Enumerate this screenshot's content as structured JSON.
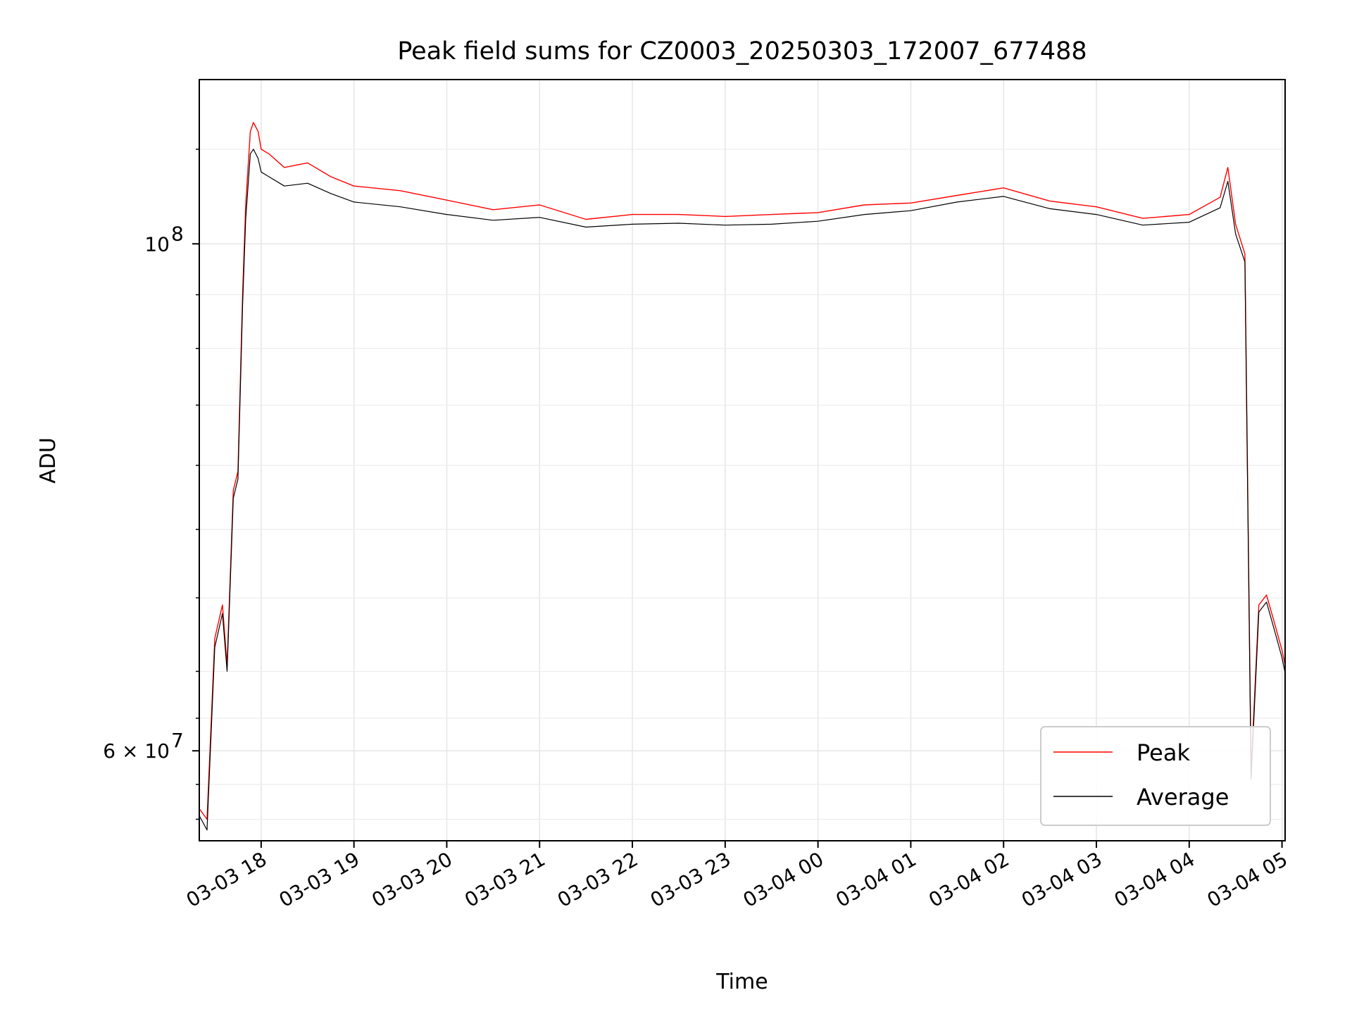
{
  "chart_data": {
    "type": "line",
    "title": "Peak field sums for CZ0003_20250303_172007_677488",
    "xlabel": "Time",
    "ylabel": "ADU",
    "y_scale": "log",
    "xlim": [
      "2025-03-03 17:20",
      "2025-03-04 05:02"
    ],
    "ylim": [
      54800000,
      118000000
    ],
    "grid": true,
    "legend_position": "lower-right",
    "x_ticks": [
      "03-03 18",
      "03-03 19",
      "03-03 20",
      "03-03 21",
      "03-03 22",
      "03-03 23",
      "03-04 00",
      "03-04 01",
      "03-04 02",
      "03-04 03",
      "03-04 04",
      "03-04 05"
    ],
    "x_tick_times": [
      "2025-03-03 18:00",
      "2025-03-03 19:00",
      "2025-03-03 20:00",
      "2025-03-03 21:00",
      "2025-03-03 22:00",
      "2025-03-03 23:00",
      "2025-03-04 00:00",
      "2025-03-04 01:00",
      "2025-03-04 02:00",
      "2025-03-04 03:00",
      "2025-03-04 04:00",
      "2025-03-04 05:00"
    ],
    "y_ticks": [
      {
        "value": 100000000,
        "label": "10",
        "exponent": "8"
      },
      {
        "value": 60000000,
        "label": "6 × 10",
        "exponent": "7"
      }
    ],
    "y_minor_ticks": [
      56000000,
      58000000,
      62000000,
      65000000,
      70000000,
      75000000,
      80000000,
      85000000,
      90000000,
      95000000,
      110000000
    ],
    "series": [
      {
        "name": "Peak",
        "color": "#ff0000",
        "x": [
          "2025-03-03 17:20",
          "2025-03-03 17:25",
          "2025-03-03 17:30",
          "2025-03-03 17:35",
          "2025-03-03 17:38",
          "2025-03-03 17:42",
          "2025-03-03 17:45",
          "2025-03-03 17:48",
          "2025-03-03 17:50",
          "2025-03-03 17:53",
          "2025-03-03 17:55",
          "2025-03-03 17:58",
          "2025-03-03 18:00",
          "2025-03-03 18:05",
          "2025-03-03 18:15",
          "2025-03-03 18:30",
          "2025-03-03 18:45",
          "2025-03-03 19:00",
          "2025-03-03 19:30",
          "2025-03-03 20:00",
          "2025-03-03 20:30",
          "2025-03-03 21:00",
          "2025-03-03 21:30",
          "2025-03-03 22:00",
          "2025-03-03 22:30",
          "2025-03-03 23:00",
          "2025-03-03 23:30",
          "2025-03-04 00:00",
          "2025-03-04 00:30",
          "2025-03-04 01:00",
          "2025-03-04 01:30",
          "2025-03-04 02:00",
          "2025-03-04 02:30",
          "2025-03-04 03:00",
          "2025-03-04 03:30",
          "2025-03-04 04:00",
          "2025-03-04 04:20",
          "2025-03-04 04:25",
          "2025-03-04 04:30",
          "2025-03-04 04:36",
          "2025-03-04 04:40",
          "2025-03-04 04:45",
          "2025-03-04 04:50",
          "2025-03-04 04:55",
          "2025-03-04 05:00",
          "2025-03-04 05:02"
        ],
        "values": [
          56600000,
          56000000,
          67200000,
          69500000,
          65400000,
          78000000,
          79500000,
          95000000,
          104000000,
          112000000,
          113000000,
          112000000,
          110000000,
          109500000,
          108000000,
          108500000,
          107000000,
          106000000,
          105500000,
          104500000,
          103500000,
          104000000,
          102500000,
          103000000,
          103000000,
          102800000,
          103000000,
          103200000,
          104000000,
          104200000,
          105000000,
          105800000,
          104400000,
          103800000,
          102600000,
          103000000,
          104800000,
          108000000,
          102000000,
          99000000,
          58800000,
          69500000,
          70200000,
          68300000,
          66400000,
          65400000
        ]
      },
      {
        "name": "Average",
        "color": "#000000",
        "x": [
          "2025-03-03 17:20",
          "2025-03-03 17:25",
          "2025-03-03 17:30",
          "2025-03-03 17:35",
          "2025-03-03 17:38",
          "2025-03-03 17:42",
          "2025-03-03 17:45",
          "2025-03-03 17:48",
          "2025-03-03 17:50",
          "2025-03-03 17:53",
          "2025-03-03 17:55",
          "2025-03-03 17:58",
          "2025-03-03 18:00",
          "2025-03-03 18:05",
          "2025-03-03 18:15",
          "2025-03-03 18:30",
          "2025-03-03 18:45",
          "2025-03-03 19:00",
          "2025-03-03 19:30",
          "2025-03-03 20:00",
          "2025-03-03 20:30",
          "2025-03-03 21:00",
          "2025-03-03 21:30",
          "2025-03-03 22:00",
          "2025-03-03 22:30",
          "2025-03-03 23:00",
          "2025-03-03 23:30",
          "2025-03-04 00:00",
          "2025-03-04 00:30",
          "2025-03-04 01:00",
          "2025-03-04 01:30",
          "2025-03-04 02:00",
          "2025-03-04 02:30",
          "2025-03-04 03:00",
          "2025-03-04 03:30",
          "2025-03-04 04:00",
          "2025-03-04 04:20",
          "2025-03-04 04:25",
          "2025-03-04 04:30",
          "2025-03-04 04:36",
          "2025-03-04 04:40",
          "2025-03-04 04:45",
          "2025-03-04 04:50",
          "2025-03-04 04:55",
          "2025-03-04 05:00",
          "2025-03-04 05:02"
        ],
        "values": [
          56200000,
          55400000,
          66600000,
          68900000,
          65000000,
          77400000,
          78900000,
          94000000,
          102500000,
          109500000,
          110000000,
          109000000,
          107500000,
          107000000,
          106000000,
          106300000,
          105200000,
          104300000,
          103800000,
          103000000,
          102400000,
          102700000,
          101700000,
          102000000,
          102100000,
          101900000,
          102000000,
          102300000,
          103000000,
          103400000,
          104300000,
          104900000,
          103600000,
          103000000,
          101900000,
          102200000,
          103700000,
          106500000,
          101000000,
          98200000,
          58300000,
          69000000,
          69700000,
          67800000,
          65900000,
          64900000
        ]
      }
    ]
  }
}
